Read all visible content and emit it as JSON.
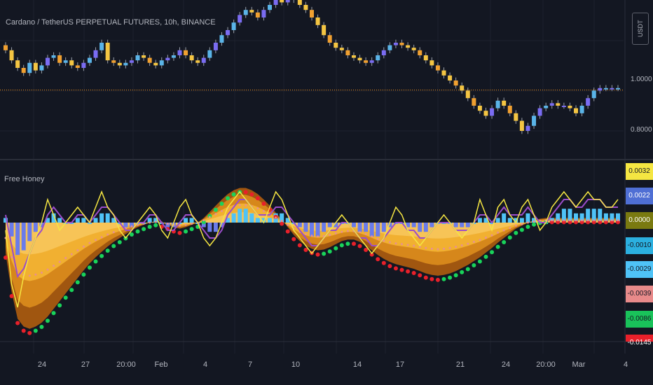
{
  "chart_title": "Cardano / TetherUS PERPETUAL FUTURES, 10h, BINANCE",
  "currency_label": "USDT",
  "indicator_name": "Free Honey",
  "colors": {
    "background": "#131722",
    "grid": "#1e222d",
    "price_line": "#f7931a",
    "candle_palette": [
      "#f4c542",
      "#7a6cf2",
      "#5ab4e8",
      "#f0a030"
    ],
    "ma_yellow": "#f5e642",
    "ma_purple": "#9b4dca",
    "histogram": "#4fc3f7",
    "band_dark": "#a85a10",
    "band_mid": "#d98a1c",
    "band_light": "#f2b233",
    "dots_green": "#19d35a",
    "dots_red": "#e8202a",
    "dots_pink": "#e89090"
  },
  "price_axis": {
    "labels": [
      "1.0000",
      "0.8000"
    ],
    "current_price": 0.962
  },
  "indicator_axis": {
    "badges": [
      {
        "label": "0.0032",
        "bg": "#f5e642",
        "fg": "#131722"
      },
      {
        "label": "0.0022",
        "bg": "#4f6fd4",
        "fg": "#ffffff"
      },
      {
        "label": "0.0000",
        "bg": "#7a7a10",
        "fg": "#ffffff"
      },
      {
        "label": "-0.0010",
        "bg": "#2bb0e0",
        "fg": "#131722"
      },
      {
        "label": "-0.0029",
        "bg": "#4fc3f7",
        "fg": "#131722"
      },
      {
        "label": "-0.0039",
        "bg": "#e88a8a",
        "fg": "#131722"
      },
      {
        "label": "-0.0086",
        "bg": "#19c25a",
        "fg": "#131722"
      },
      {
        "label": "-0.0145",
        "bg": "#e8202a",
        "fg": "#ffffff"
      }
    ]
  },
  "time_axis": {
    "labels": [
      "24",
      "27",
      "20:00",
      "Feb",
      "4",
      "7",
      "10",
      "14",
      "17",
      "21",
      "24",
      "20:00",
      "Mar",
      "4"
    ]
  },
  "chart_data": {
    "type": "line",
    "title": "Cardano / TetherUS PERPETUAL FUTURES, 10h, BINANCE",
    "price_close": [
      1.12,
      1.08,
      1.05,
      1.03,
      1.07,
      1.04,
      1.06,
      1.09,
      1.1,
      1.07,
      1.08,
      1.06,
      1.05,
      1.07,
      1.09,
      1.12,
      1.15,
      1.08,
      1.07,
      1.06,
      1.07,
      1.08,
      1.1,
      1.09,
      1.07,
      1.06,
      1.08,
      1.09,
      1.1,
      1.12,
      1.1,
      1.08,
      1.07,
      1.09,
      1.12,
      1.15,
      1.18,
      1.2,
      1.23,
      1.26,
      1.28,
      1.27,
      1.25,
      1.28,
      1.3,
      1.33,
      1.31,
      1.34,
      1.32,
      1.3,
      1.28,
      1.25,
      1.22,
      1.18,
      1.15,
      1.13,
      1.12,
      1.1,
      1.09,
      1.08,
      1.07,
      1.08,
      1.1,
      1.12,
      1.14,
      1.15,
      1.14,
      1.13,
      1.12,
      1.1,
      1.08,
      1.06,
      1.04,
      1.02,
      1.0,
      0.98,
      0.96,
      0.93,
      0.9,
      0.88,
      0.86,
      0.89,
      0.92,
      0.9,
      0.87,
      0.84,
      0.8,
      0.82,
      0.86,
      0.89,
      0.9,
      0.91,
      0.9,
      0.9,
      0.89,
      0.87,
      0.9,
      0.93,
      0.96,
      0.97,
      0.97,
      0.97,
      0.97
    ],
    "oscillator_yellow": [
      -0.001,
      -0.008,
      -0.011,
      -0.007,
      -0.004,
      -0.002,
      0.0,
      0.003,
      0.001,
      -0.001,
      0.0,
      0.001,
      0.002,
      0.001,
      0.0,
      0.002,
      0.004,
      0.002,
      0.001,
      -0.001,
      -0.002,
      -0.001,
      0.0,
      0.001,
      0.002,
      0.001,
      -0.001,
      -0.002,
      0.0,
      0.002,
      0.003,
      0.001,
      0.0,
      -0.002,
      -0.003,
      -0.002,
      0.0,
      0.002,
      0.003,
      0.004,
      0.003,
      0.002,
      0.001,
      0.0,
      0.002,
      0.004,
      0.003,
      0.001,
      -0.001,
      -0.002,
      -0.003,
      -0.004,
      -0.003,
      -0.002,
      -0.001,
      0.0,
      0.001,
      0.0,
      -0.001,
      -0.002,
      -0.003,
      -0.004,
      -0.003,
      -0.002,
      0.0,
      0.002,
      0.001,
      -0.001,
      -0.002,
      -0.003,
      -0.002,
      -0.001,
      0.0,
      0.001,
      0.0,
      -0.001,
      -0.002,
      -0.001,
      0.0,
      0.003,
      0.001,
      -0.001,
      0.002,
      0.003,
      0.001,
      0.0,
      0.002,
      0.003,
      0.001,
      -0.001,
      0.0,
      0.002,
      0.003,
      0.004,
      0.003,
      0.002,
      0.003,
      0.004,
      0.003,
      0.003,
      0.002,
      0.002,
      0.003
    ],
    "oscillator_purple": [
      0.001,
      -0.003,
      -0.007,
      -0.006,
      -0.004,
      -0.002,
      -0.001,
      0.001,
      0.002,
      0.001,
      0.0,
      0.0,
      0.001,
      0.001,
      0.0,
      0.001,
      0.002,
      0.002,
      0.001,
      0.0,
      -0.001,
      -0.001,
      0.0,
      0.0,
      0.001,
      0.001,
      0.0,
      -0.001,
      -0.001,
      0.0,
      0.001,
      0.001,
      0.0,
      -0.001,
      -0.002,
      -0.002,
      -0.001,
      0.001,
      0.002,
      0.003,
      0.003,
      0.002,
      0.001,
      0.001,
      0.001,
      0.002,
      0.002,
      0.001,
      0.0,
      -0.001,
      -0.002,
      -0.003,
      -0.003,
      -0.002,
      -0.001,
      -0.001,
      0.0,
      0.0,
      -0.001,
      -0.002,
      -0.002,
      -0.003,
      -0.003,
      -0.002,
      -0.001,
      0.0,
      0.0,
      -0.001,
      -0.001,
      -0.002,
      -0.002,
      -0.001,
      0.0,
      0.0,
      0.0,
      -0.001,
      -0.001,
      -0.001,
      0.0,
      0.001,
      0.001,
      0.0,
      0.001,
      0.002,
      0.001,
      0.001,
      0.001,
      0.002,
      0.001,
      0.0,
      0.0,
      0.001,
      0.002,
      0.003,
      0.003,
      0.002,
      0.002,
      0.003,
      0.003,
      0.003,
      0.002,
      0.002,
      0.002
    ],
    "band_lower": [
      -0.004,
      -0.009,
      -0.0125,
      -0.0135,
      -0.0138,
      -0.0135,
      -0.013,
      -0.0122,
      -0.0112,
      -0.0102,
      -0.0092,
      -0.0082,
      -0.0072,
      -0.0062,
      -0.0053,
      -0.0045,
      -0.0038,
      -0.0031,
      -0.0025,
      -0.002,
      -0.0015,
      -0.001,
      -0.0006,
      -0.0003,
      0.0,
      0.0002,
      0.0,
      -0.0003,
      -0.0006,
      -0.0008,
      -0.0006,
      -0.0003,
      0.0,
      0.0006,
      0.0014,
      0.0022,
      0.003,
      0.0037,
      0.0042,
      0.0045,
      0.0045,
      0.0042,
      0.0037,
      0.003,
      0.0022,
      0.0013,
      0.0004,
      -0.0006,
      -0.0016,
      -0.0024,
      -0.003,
      -0.0034,
      -0.0036,
      -0.0035,
      -0.0032,
      -0.0028,
      -0.0024,
      -0.0022,
      -0.0022,
      -0.0025,
      -0.003,
      -0.0036,
      -0.0042,
      -0.0047,
      -0.0051,
      -0.0054,
      -0.0056,
      -0.0058,
      -0.006,
      -0.0063,
      -0.0066,
      -0.0068,
      -0.0069,
      -0.0068,
      -0.0066,
      -0.0063,
      -0.0059,
      -0.0055,
      -0.005,
      -0.0045,
      -0.0039,
      -0.0033,
      -0.0026,
      -0.002,
      -0.0014,
      -0.0008,
      -0.0004,
      0.0,
      0.0003,
      0.0005,
      0.0006,
      0.0006,
      0.0006,
      0.0006,
      0.0006,
      0.0006,
      0.0006,
      0.0006,
      0.0006,
      0.0006,
      0.0006,
      0.0006,
      0.0006
    ],
    "xlabel": "",
    "ylabel": ""
  }
}
